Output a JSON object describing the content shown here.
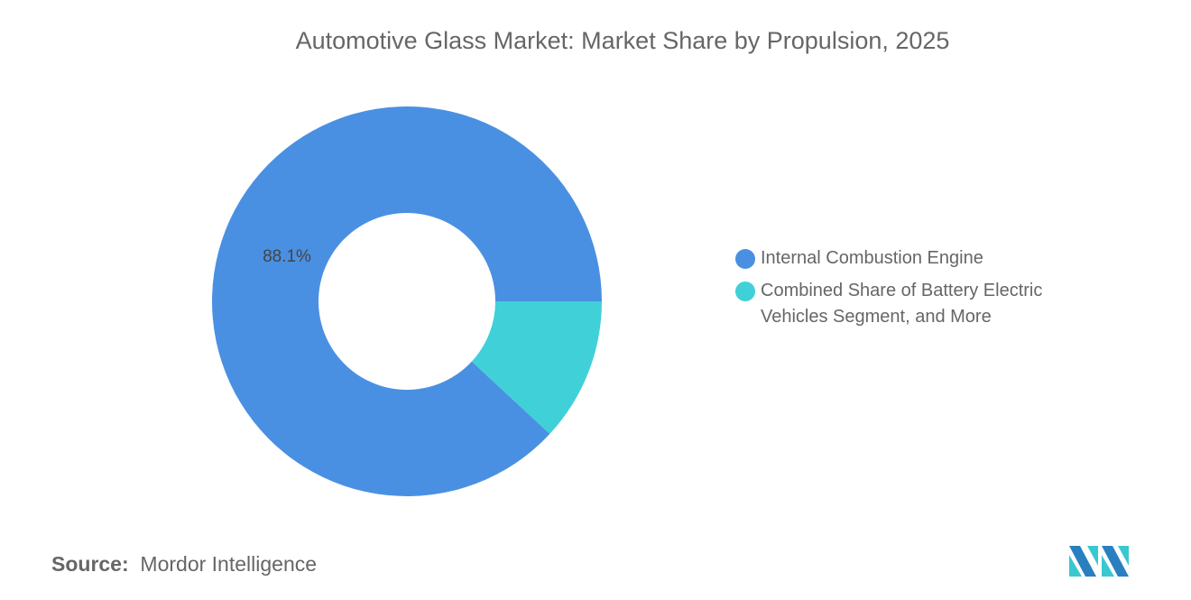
{
  "chart_data": {
    "type": "pie",
    "style": "donut",
    "title": "Automotive Glass Market: Market Share by Propulsion, 2025",
    "slices": [
      {
        "name": "Internal Combustion Engine",
        "value": 88.1,
        "label": "88.1%",
        "color": "#4a90e2"
      },
      {
        "name": "Combined Share of Battery Electric Vehicles Segment, and More",
        "value": 11.9,
        "label": "",
        "color": "#40d0d8"
      }
    ],
    "legend_position": "right",
    "legend": [
      "Internal Combustion Engine",
      [
        "Combined Share of Battery Electric",
        "Vehicles Segment, and More"
      ]
    ]
  },
  "source": {
    "label": "Source:",
    "value": "Mordor Intelligence"
  }
}
